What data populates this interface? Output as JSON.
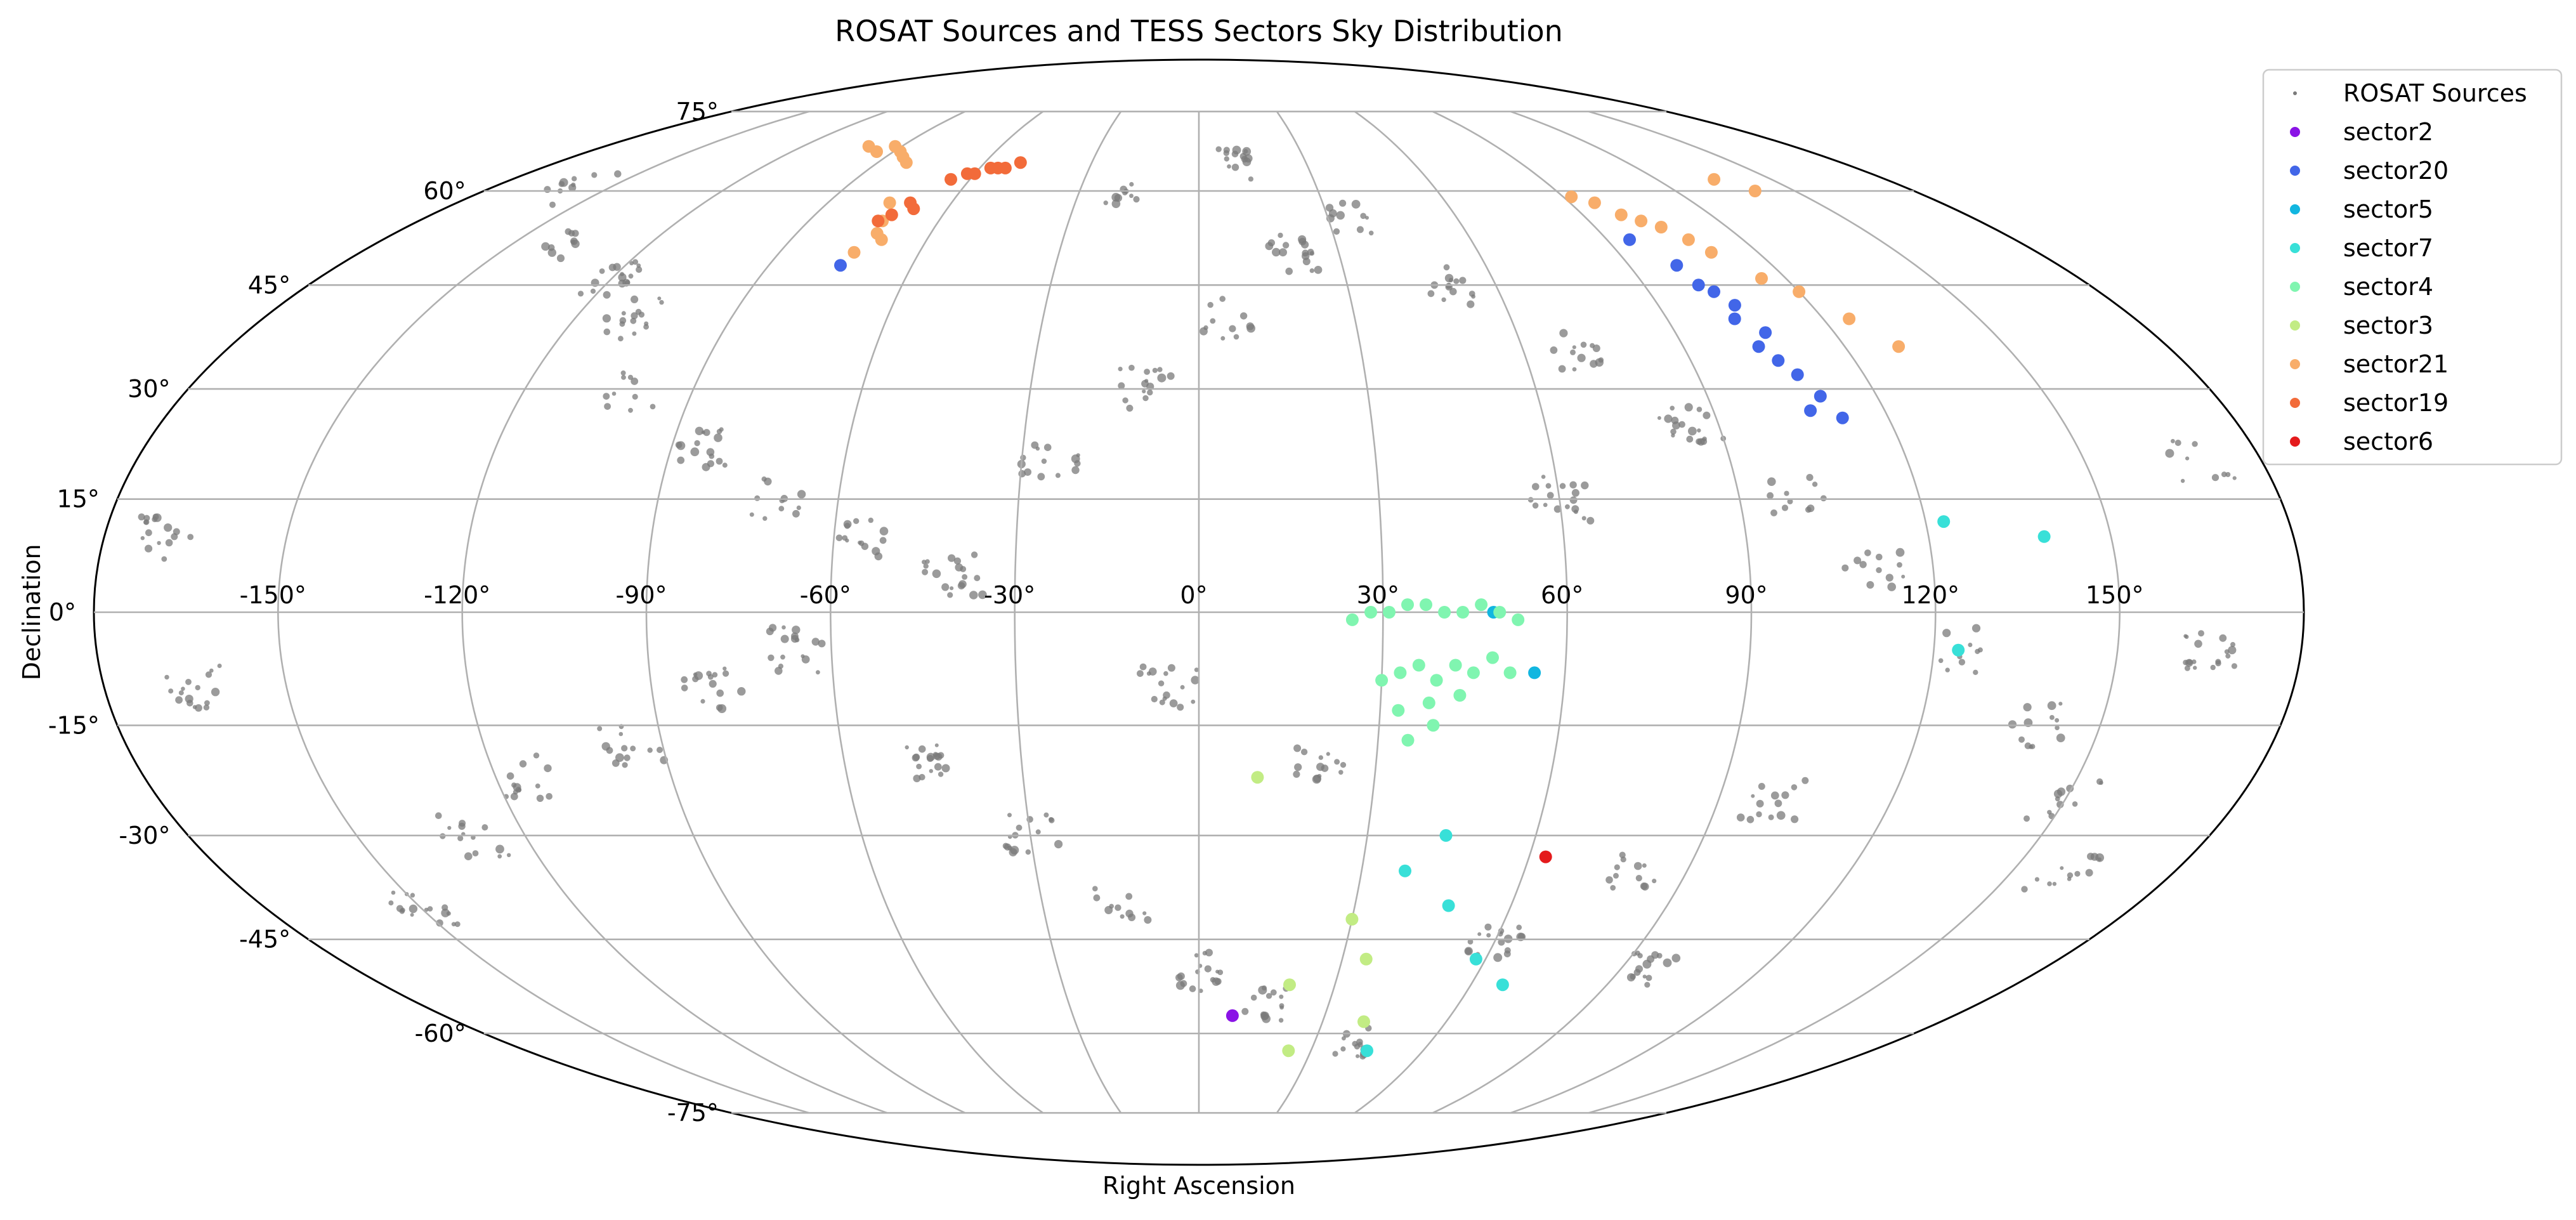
{
  "chart_data": {
    "type": "scatter",
    "projection": "mollweide",
    "title": "ROSAT Sources and TESS Sectors Sky Distribution",
    "xlabel": "Right Ascension",
    "ylabel": "Declination",
    "grid": true,
    "legend_position": "top-right",
    "x_ticks": [
      "-150°",
      "-120°",
      "-90°",
      "-60°",
      "-30°",
      "0°",
      "30°",
      "60°",
      "90°",
      "120°",
      "150°"
    ],
    "x_tick_values": [
      -150,
      -120,
      -90,
      -60,
      -30,
      0,
      30,
      60,
      90,
      120,
      150
    ],
    "y_ticks": [
      "-75°",
      "-60°",
      "-45°",
      "-30°",
      "-15°",
      "0°",
      "15°",
      "30°",
      "45°",
      "60°",
      "75°"
    ],
    "y_tick_values": [
      -75,
      -60,
      -45,
      -30,
      -15,
      0,
      15,
      30,
      45,
      60,
      75
    ],
    "xlim": [
      -180,
      180
    ],
    "ylim": [
      -90,
      90
    ],
    "background_source_color": "#7a7a7a",
    "series": [
      {
        "name": "ROSAT Sources",
        "color": "#7a7a7a",
        "marker": "small",
        "points": [
          [
            -160,
            60
          ],
          [
            -140,
            52
          ],
          [
            -120,
            46
          ],
          [
            -110,
            40
          ],
          [
            -100,
            30
          ],
          [
            -85,
            22
          ],
          [
            -70,
            15
          ],
          [
            -55,
            10
          ],
          [
            -40,
            5
          ],
          [
            -25,
            20
          ],
          [
            -10,
            30
          ],
          [
            5,
            40
          ],
          [
            20,
            50
          ],
          [
            35,
            55
          ],
          [
            50,
            45
          ],
          [
            70,
            35
          ],
          [
            85,
            25
          ],
          [
            100,
            15
          ],
          [
            110,
            5
          ],
          [
            125,
            -5
          ],
          [
            140,
            -15
          ],
          [
            150,
            -25
          ],
          [
            160,
            -35
          ],
          [
            -150,
            -40
          ],
          [
            -130,
            -30
          ],
          [
            -115,
            -22
          ],
          [
            -95,
            -18
          ],
          [
            -80,
            -10
          ],
          [
            -65,
            -5
          ],
          [
            -45,
            -20
          ],
          [
            -30,
            -30
          ],
          [
            -15,
            -40
          ],
          [
            0,
            -50
          ],
          [
            15,
            -55
          ],
          [
            40,
            -62
          ],
          [
            60,
            -45
          ],
          [
            80,
            -35
          ],
          [
            95,
            -50
          ],
          [
            -170,
            10
          ],
          [
            -165,
            -10
          ],
          [
            170,
            20
          ],
          [
            165,
            -5
          ],
          [
            -20,
            60
          ],
          [
            10,
            65
          ],
          [
            -5,
            -10
          ],
          [
            20,
            -20
          ],
          [
            60,
            15
          ],
          [
            100,
            -25
          ]
        ]
      },
      {
        "name": "sector2",
        "color": "#8a13e6",
        "points": [
          [
            8,
            -57
          ]
        ]
      },
      {
        "name": "sector20",
        "color": "#4266e8",
        "points": [
          [
            95,
            52
          ],
          [
            100,
            48
          ],
          [
            101,
            45
          ],
          [
            103,
            44
          ],
          [
            105,
            42
          ],
          [
            103,
            40
          ],
          [
            107,
            38
          ],
          [
            104,
            36
          ],
          [
            106,
            34
          ],
          [
            108,
            32
          ],
          [
            110,
            29
          ],
          [
            107,
            27
          ],
          [
            112,
            26
          ],
          [
            -75,
            48
          ]
        ]
      },
      {
        "name": "sector5",
        "color": "#12b6e0",
        "points": [
          [
            48,
            0
          ],
          [
            55,
            -8
          ]
        ]
      },
      {
        "name": "sector7",
        "color": "#38e0d8",
        "points": [
          [
            123,
            12
          ],
          [
            139,
            10
          ],
          [
            124,
            -5
          ],
          [
            67,
            -52
          ],
          [
            58,
            -48
          ],
          [
            48,
            -40
          ],
          [
            38,
            -35
          ],
          [
            44,
            -30
          ],
          [
            45,
            -63
          ]
        ]
      },
      {
        "name": "sector4",
        "color": "#80f5b0",
        "points": [
          [
            25,
            -1
          ],
          [
            28,
            0
          ],
          [
            31,
            0
          ],
          [
            34,
            1
          ],
          [
            37,
            1
          ],
          [
            40,
            0
          ],
          [
            43,
            0
          ],
          [
            46,
            1
          ],
          [
            49,
            0
          ],
          [
            52,
            -1
          ],
          [
            30,
            -9
          ],
          [
            33,
            -8
          ],
          [
            36,
            -7
          ],
          [
            39,
            -9
          ],
          [
            42,
            -7
          ],
          [
            45,
            -8
          ],
          [
            48,
            -6
          ],
          [
            51,
            -8
          ],
          [
            33,
            -13
          ],
          [
            38,
            -12
          ],
          [
            43,
            -11
          ],
          [
            35,
            -17
          ],
          [
            39,
            -15
          ]
        ]
      },
      {
        "name": "sector3",
        "color": "#c2ec84",
        "points": [
          [
            10,
            -22
          ],
          [
            20,
            -52
          ],
          [
            30,
            -42
          ],
          [
            35,
            -48
          ],
          [
            24,
            -63
          ],
          [
            40,
            -58
          ]
        ]
      },
      {
        "name": "sector21",
        "color": "#f8ad6a",
        "points": [
          [
            -100,
            68
          ],
          [
            -95,
            67
          ],
          [
            -92,
            68
          ],
          [
            -88,
            67
          ],
          [
            -85,
            66
          ],
          [
            -82,
            65
          ],
          [
            -75,
            58
          ],
          [
            -73,
            55
          ],
          [
            -72,
            53
          ],
          [
            -70,
            52
          ],
          [
            -74,
            50
          ],
          [
            92,
            59
          ],
          [
            96,
            58
          ],
          [
            99,
            56
          ],
          [
            102,
            55
          ],
          [
            105,
            54
          ],
          [
            108,
            52
          ],
          [
            110,
            50
          ],
          [
            115,
            46
          ],
          [
            120,
            44
          ],
          [
            125,
            40
          ],
          [
            130,
            36
          ],
          [
            135,
            62
          ],
          [
            140,
            60
          ]
        ]
      },
      {
        "name": "sector19",
        "color": "#f26b3a",
        "points": [
          [
            -65,
            62
          ],
          [
            -62,
            63
          ],
          [
            -60,
            63
          ],
          [
            -57,
            64
          ],
          [
            -55,
            64
          ],
          [
            -53,
            64
          ],
          [
            -50,
            65
          ],
          [
            -70,
            58
          ],
          [
            -68,
            57
          ],
          [
            -72,
            56
          ],
          [
            -74,
            55
          ]
        ]
      },
      {
        "name": "sector6",
        "color": "#e41a1c",
        "points": [
          [
            63,
            -33
          ]
        ]
      }
    ]
  }
}
